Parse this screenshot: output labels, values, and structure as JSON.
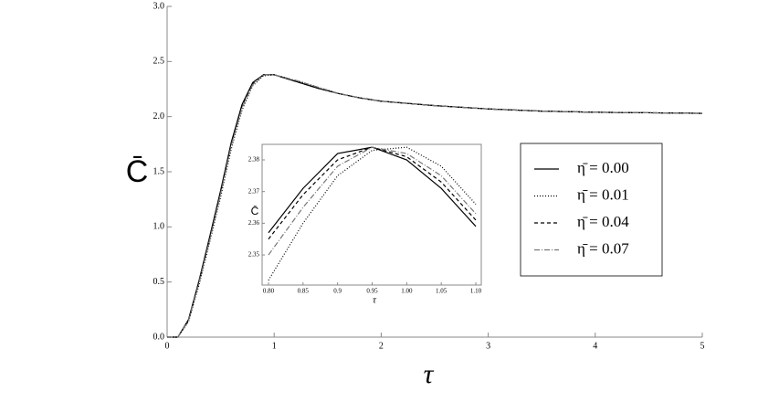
{
  "chart_data": [
    {
      "type": "line",
      "x_label": "τ",
      "y_label": "C̄",
      "x": [
        0,
        0.1,
        0.2,
        0.3,
        0.4,
        0.5,
        0.6,
        0.7,
        0.8,
        0.9,
        1.0,
        1.2,
        1.4,
        1.6,
        1.8,
        2.0,
        2.5,
        3.0,
        3.5,
        4.0,
        4.5,
        5.0
      ],
      "series": [
        {
          "name": "η̄ = 0.00",
          "color": "#000000",
          "dash": "none",
          "values": [
            0,
            0,
            0.16,
            0.52,
            0.92,
            1.33,
            1.77,
            2.11,
            2.31,
            2.38,
            2.38,
            2.32,
            2.26,
            2.21,
            2.17,
            2.14,
            2.1,
            2.07,
            2.05,
            2.04,
            2.035,
            2.03
          ]
        },
        {
          "name": "η̄ = 0.01",
          "color": "#000000",
          "dash": "1,2",
          "values": [
            0,
            0,
            0.14,
            0.48,
            0.87,
            1.27,
            1.71,
            2.06,
            2.28,
            2.37,
            2.38,
            2.33,
            2.27,
            2.21,
            2.17,
            2.14,
            2.1,
            2.07,
            2.05,
            2.04,
            2.035,
            2.03
          ]
        },
        {
          "name": "η̄ = 0.04",
          "color": "#000000",
          "dash": "4,3",
          "values": [
            0,
            0,
            0.15,
            0.51,
            0.91,
            1.32,
            1.76,
            2.1,
            2.3,
            2.38,
            2.38,
            2.32,
            2.26,
            2.21,
            2.17,
            2.14,
            2.1,
            2.07,
            2.05,
            2.04,
            2.035,
            2.03
          ]
        },
        {
          "name": "η̄ = 0.07",
          "color": "#777777",
          "dash": "6,2,1,2",
          "values": [
            0,
            0,
            0.15,
            0.5,
            0.89,
            1.3,
            1.74,
            2.08,
            2.29,
            2.38,
            2.38,
            2.33,
            2.27,
            2.21,
            2.17,
            2.14,
            2.1,
            2.07,
            2.05,
            2.04,
            2.035,
            2.03
          ]
        }
      ],
      "xlim": [
        0,
        5
      ],
      "ylim": [
        0,
        3
      ],
      "xticks": [
        0,
        1,
        2,
        3,
        4,
        5
      ],
      "yticks": [
        {
          "value": 0,
          "label": "0.0"
        },
        {
          "value": 0.5,
          "label": "0.5"
        },
        {
          "value": 1,
          "label": "1.0"
        },
        {
          "value": 1.5,
          "label": "1.5"
        },
        {
          "value": 2,
          "label": "2.0"
        },
        {
          "value": 2.5,
          "label": "2.5"
        },
        {
          "value": 3,
          "label": "3.0"
        }
      ]
    },
    {
      "type": "line",
      "x_label": "τ",
      "y_label": "C̄",
      "x": [
        0.8,
        0.85,
        0.9,
        0.95,
        1.0,
        1.05,
        1.1
      ],
      "series": [
        {
          "color": "#000000",
          "dash": "none",
          "values": [
            2.357,
            2.371,
            2.382,
            2.384,
            2.38,
            2.371,
            2.359
          ]
        },
        {
          "color": "#000000",
          "dash": "1,2",
          "values": [
            2.342,
            2.36,
            2.375,
            2.383,
            2.384,
            2.378,
            2.366
          ]
        },
        {
          "color": "#000000",
          "dash": "4,3",
          "values": [
            2.355,
            2.369,
            2.38,
            2.384,
            2.381,
            2.373,
            2.361
          ]
        },
        {
          "color": "#777777",
          "dash": "6,2,1,2",
          "values": [
            2.35,
            2.365,
            2.378,
            2.384,
            2.382,
            2.375,
            2.363
          ]
        }
      ],
      "xlim": [
        0.7908,
        1.1079
      ],
      "ylim": [
        2.3405,
        2.3849
      ],
      "xticks": [
        {
          "value": 0.8,
          "label": "0.80"
        },
        0.85,
        0.9,
        0.95,
        {
          "value": 1.0,
          "label": "1.00"
        },
        1.05,
        {
          "value": 1.1,
          "label": "1.10"
        }
      ],
      "yticks": [
        2.35,
        2.36,
        2.37,
        2.38
      ]
    }
  ]
}
